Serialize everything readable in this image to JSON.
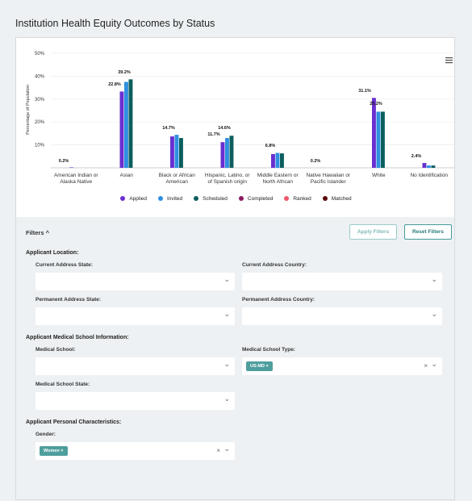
{
  "title": "Institution Health Equity Outcomes by Status",
  "chart_data": {
    "type": "bar",
    "ylabel": "Percentage of Population",
    "categories": [
      "American Indian or Alaska Native",
      "Asian",
      "Black or African American",
      "Hispanic, Latino, or of Spanish origin",
      "Middle Eastern or North African",
      "Native Hawaiian or Pacific Islander",
      "White",
      "No Identification"
    ],
    "series": [
      {
        "name": "Applied",
        "color": "#6a2fd0",
        "values": [
          0.2,
          33.3,
          13.7,
          11.2,
          6,
          0,
          30.5,
          2.1
        ]
      },
      {
        "name": "Invited",
        "color": "#2f8fe0",
        "values": [
          0,
          37.5,
          14.4,
          13,
          6.5,
          0,
          24.5,
          1
        ]
      },
      {
        "name": "Scheduled",
        "color": "#0c5e5e",
        "values": [
          0,
          38.6,
          13,
          14,
          6.3,
          0,
          24.5,
          1
        ]
      },
      {
        "name": "Completed",
        "color": "#8a1c5e",
        "values": [
          0,
          0,
          0,
          0,
          0,
          0,
          0,
          0
        ]
      },
      {
        "name": "Ranked",
        "color": "#f0566a",
        "values": [
          0,
          0,
          0,
          0,
          0,
          0,
          0,
          0
        ]
      },
      {
        "name": "Matched",
        "color": "#5a0b0b",
        "values": [
          0,
          0,
          0,
          0,
          0,
          0,
          0,
          0
        ]
      }
    ],
    "annotations": [
      "0.2%",
      "22.8%",
      "39.2%",
      "14.7%",
      "11.7%",
      "14.6%",
      "6.8%",
      "0.2%",
      "31.1%",
      "25.2%",
      "2.4%"
    ],
    "ylim": [
      0,
      50
    ],
    "yticks": [
      {
        "value": 10,
        "label": "10%"
      },
      {
        "value": 20,
        "label": "20%"
      },
      {
        "value": 30,
        "label": "30%"
      },
      {
        "value": 40,
        "label": "40%"
      },
      {
        "value": 50,
        "label": "50%"
      }
    ],
    "grid": true
  },
  "filters": {
    "title": "Filters",
    "buttons": [
      "Apply Filters",
      "Reset Filters"
    ],
    "sections": [
      {
        "title": "Applicant Location:",
        "fields": [
          {
            "label": "Current Address State:"
          },
          {
            "label": "Current Address Country:"
          },
          {
            "label": "Permanent Address State:"
          },
          {
            "label": "Permanent Address Country:"
          }
        ]
      },
      {
        "title": "Applicant Medical School Information:",
        "fields": [
          {
            "label": "Medical School:"
          },
          {
            "label": "Medical School Type:",
            "tags": [
              "US-MD"
            ]
          },
          {
            "label": "Medical School State:"
          }
        ]
      },
      {
        "title": "Applicant Personal Characteristics:",
        "fields": [
          {
            "label": "Gender:",
            "tags": [
              "Women"
            ]
          }
        ]
      }
    ]
  }
}
